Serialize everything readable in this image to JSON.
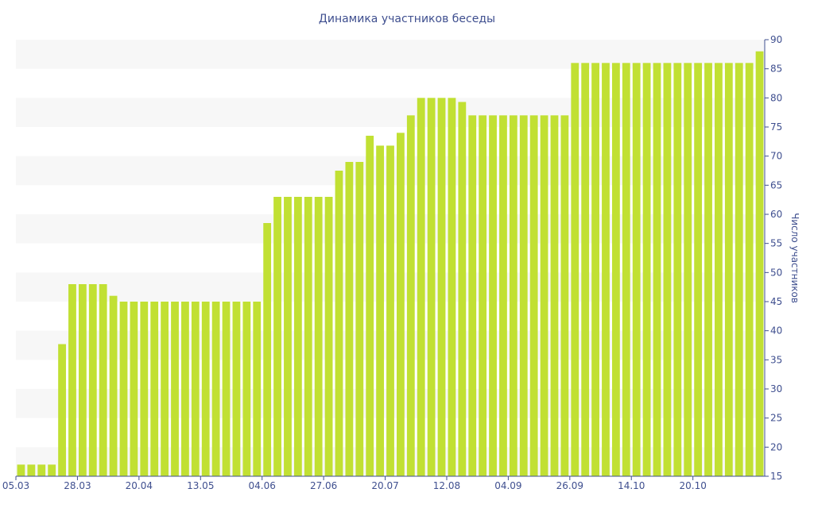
{
  "chart_data": {
    "type": "bar",
    "title": "Динамика участников беседы",
    "ylabel": "Число участников",
    "ylim": [
      15,
      90
    ],
    "yticks": [
      15,
      20,
      25,
      30,
      35,
      40,
      45,
      50,
      55,
      60,
      65,
      70,
      75,
      80,
      85,
      90
    ],
    "y_axis_side": "right",
    "grid": "alternating-bands",
    "x_tick_labels": [
      "05.03",
      "28.03",
      "20.04",
      "13.05",
      "04.06",
      "27.06",
      "20.07",
      "12.08",
      "04.09",
      "26.09",
      "14.10",
      "20.10"
    ],
    "x_tick_indices": [
      0,
      6,
      12,
      18,
      24,
      30,
      36,
      42,
      48,
      54,
      60,
      66
    ],
    "values": [
      17,
      17,
      17,
      17,
      37.7,
      48,
      48,
      48,
      48,
      46,
      45,
      45,
      45,
      45,
      45,
      45,
      45,
      45,
      45,
      45,
      45,
      45,
      45,
      45,
      58.5,
      63,
      63,
      63,
      63,
      63,
      63,
      67.5,
      69,
      69,
      73.5,
      71.8,
      71.8,
      74,
      77,
      80,
      80,
      80,
      80,
      79.3,
      77,
      77,
      77,
      77,
      77,
      77,
      77,
      77,
      77,
      77,
      86,
      86,
      86,
      86,
      86,
      86,
      86,
      86,
      86,
      86,
      86,
      86,
      86,
      86,
      86,
      86,
      86,
      86,
      88
    ],
    "colors": {
      "bar": "#c1e033",
      "band": "#f7f7f7",
      "text": "#3f4f8f"
    }
  }
}
